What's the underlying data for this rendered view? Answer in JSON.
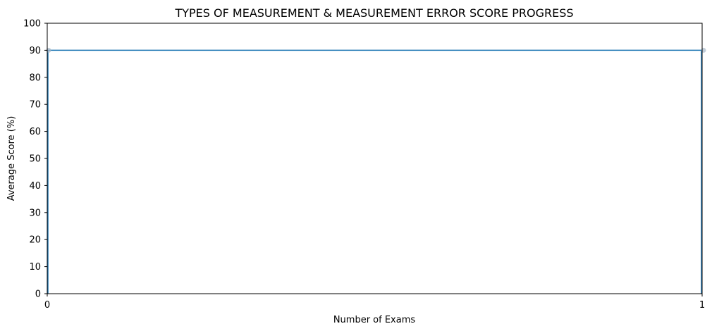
{
  "chart_data": {
    "type": "area",
    "title": "TYPES OF MEASUREMENT & MEASUREMENT ERROR SCORE PROGRESS",
    "xlabel": "Number of Exams",
    "ylabel": "Average Score (%)",
    "xlim": [
      0,
      1
    ],
    "ylim": [
      0,
      100
    ],
    "xticks": [
      0,
      1
    ],
    "yticks": [
      0,
      10,
      20,
      30,
      40,
      50,
      60,
      70,
      80,
      90,
      100
    ],
    "grid": "horizontal",
    "series": [
      {
        "x": [
          0,
          1
        ],
        "values": [
          90,
          90
        ],
        "color": "#1f77b4"
      }
    ],
    "colors": {
      "fill": "#ffffff",
      "grid": "#b0b0b0",
      "marker": "#a8b8c8",
      "axis": "#000000"
    }
  }
}
